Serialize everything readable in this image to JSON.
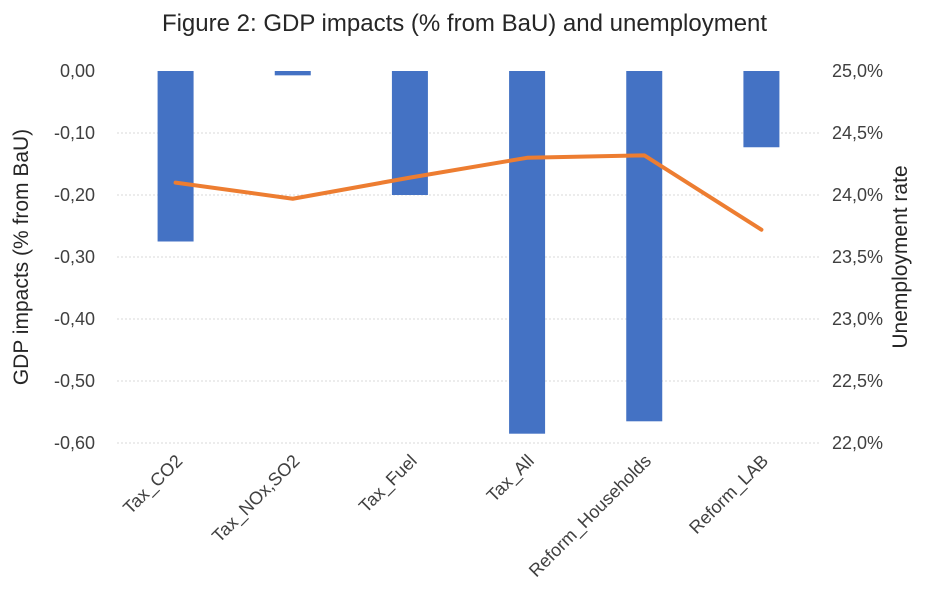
{
  "chart_data": {
    "type": "bar",
    "title": "Figure 2: GDP impacts (% from BaU) and unemployment",
    "categories": [
      "Tax_CO2",
      "Tax_NOx,SO2",
      "Tax_Fuel",
      "Tax_All",
      "Reform_Households",
      "Reform_LAB"
    ],
    "ylabel": "GDP impacts (% from BaU)",
    "y2label": "Unemployment rate",
    "ylim": [
      -0.6,
      0.0
    ],
    "y2lim": [
      22.0,
      25.0
    ],
    "yticks": [
      "0,00",
      "-0,10",
      "-0,20",
      "-0,30",
      "-0,40",
      "-0,50",
      "-0,60"
    ],
    "y2ticks": [
      "25,0%",
      "24,5%",
      "24,0%",
      "23,5%",
      "23,0%",
      "22,5%",
      "22,0%"
    ],
    "grid": true,
    "series": [
      {
        "kind": "bar",
        "axis": "left",
        "color": "#4472c4",
        "values": [
          -0.275,
          -0.007,
          -0.2,
          -0.585,
          -0.565,
          -0.123
        ]
      },
      {
        "kind": "line",
        "axis": "right",
        "color": "#ed7d31",
        "values": [
          24.1,
          23.97,
          24.14,
          24.3,
          24.32,
          23.72
        ]
      }
    ]
  }
}
